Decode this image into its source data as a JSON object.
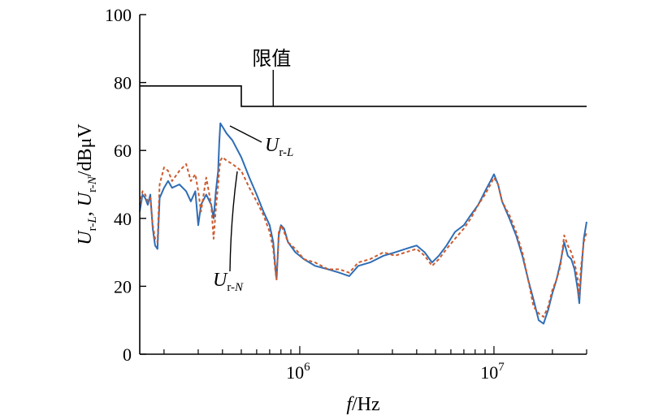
{
  "chart_data": {
    "type": "line",
    "xscale": "log",
    "xlim": [
      150000,
      30000000
    ],
    "ylim": [
      0,
      100
    ],
    "x_ticks": [
      1000000,
      10000000
    ],
    "x_tick_labels": [
      {
        "base": "10",
        "exp": "6"
      },
      {
        "base": "10",
        "exp": "7"
      }
    ],
    "y_ticks": [
      0,
      20,
      40,
      60,
      80,
      100
    ],
    "y_tick_labels": [
      "0",
      "20",
      "40",
      "60",
      "80",
      "100"
    ],
    "xlabel": {
      "italic": "f",
      "rest": "/Hz"
    },
    "ylabel": {
      "u1": "U",
      "s1": "r-",
      "s1i": "L",
      "sep": ", ",
      "u2": "U",
      "s2": "r-",
      "s2i": "N",
      "unit": "/dBμV"
    },
    "grid": false,
    "legend": "none",
    "limit": {
      "label": "限值",
      "color": "#000000",
      "points": [
        [
          150000,
          79
        ],
        [
          500000,
          79
        ],
        [
          500000,
          73
        ],
        [
          30000000,
          73
        ]
      ]
    },
    "series": [
      {
        "label": {
          "u": "U",
          "s": "r-",
          "si": "L"
        },
        "color": "#2f6db5",
        "dash": "solid",
        "points": [
          [
            150000,
            42
          ],
          [
            155000,
            47
          ],
          [
            160000,
            46
          ],
          [
            165000,
            44
          ],
          [
            170000,
            47
          ],
          [
            175000,
            37
          ],
          [
            180000,
            32
          ],
          [
            185000,
            31
          ],
          [
            190000,
            46
          ],
          [
            200000,
            49
          ],
          [
            210000,
            51
          ],
          [
            220000,
            49
          ],
          [
            240000,
            50
          ],
          [
            260000,
            48
          ],
          [
            275000,
            45
          ],
          [
            290000,
            48
          ],
          [
            300000,
            38
          ],
          [
            310000,
            44
          ],
          [
            330000,
            47
          ],
          [
            350000,
            44
          ],
          [
            360000,
            40
          ],
          [
            370000,
            48
          ],
          [
            380000,
            54
          ],
          [
            385000,
            62
          ],
          [
            390000,
            68
          ],
          [
            400000,
            67
          ],
          [
            420000,
            65
          ],
          [
            450000,
            63
          ],
          [
            500000,
            58
          ],
          [
            550000,
            52
          ],
          [
            600000,
            47
          ],
          [
            650000,
            42
          ],
          [
            700000,
            38
          ],
          [
            730000,
            33
          ],
          [
            750000,
            25
          ],
          [
            760000,
            22
          ],
          [
            780000,
            35
          ],
          [
            800000,
            38
          ],
          [
            830000,
            37
          ],
          [
            870000,
            33
          ],
          [
            950000,
            30
          ],
          [
            1050000,
            28
          ],
          [
            1200000,
            26
          ],
          [
            1400000,
            25
          ],
          [
            1600000,
            24
          ],
          [
            1800000,
            23
          ],
          [
            2000000,
            26
          ],
          [
            2300000,
            27
          ],
          [
            2700000,
            29
          ],
          [
            3100000,
            30
          ],
          [
            3500000,
            31
          ],
          [
            4000000,
            32
          ],
          [
            4400000,
            30
          ],
          [
            4800000,
            27
          ],
          [
            5200000,
            29
          ],
          [
            5700000,
            32
          ],
          [
            6300000,
            36
          ],
          [
            7000000,
            38
          ],
          [
            7600000,
            41
          ],
          [
            8300000,
            44
          ],
          [
            9000000,
            48
          ],
          [
            9600000,
            51
          ],
          [
            10000000,
            53
          ],
          [
            10500000,
            50
          ],
          [
            11000000,
            45
          ],
          [
            12000000,
            40
          ],
          [
            13000000,
            35
          ],
          [
            14000000,
            29
          ],
          [
            15000000,
            22
          ],
          [
            16000000,
            16
          ],
          [
            17000000,
            10
          ],
          [
            18000000,
            9
          ],
          [
            19000000,
            13
          ],
          [
            20000000,
            18
          ],
          [
            21000000,
            22
          ],
          [
            22000000,
            27
          ],
          [
            23000000,
            33
          ],
          [
            24000000,
            29
          ],
          [
            25000000,
            28
          ],
          [
            26000000,
            25
          ],
          [
            27000000,
            19
          ],
          [
            27500000,
            15
          ],
          [
            28000000,
            22
          ],
          [
            29000000,
            34
          ],
          [
            30000000,
            39
          ]
        ]
      },
      {
        "label": {
          "u": "U",
          "s": "r-",
          "si": "N"
        },
        "color": "#cc5b2e",
        "dash": "4 3",
        "points": [
          [
            150000,
            44
          ],
          [
            155000,
            48
          ],
          [
            160000,
            47
          ],
          [
            165000,
            45
          ],
          [
            170000,
            46
          ],
          [
            175000,
            38
          ],
          [
            180000,
            34
          ],
          [
            185000,
            33
          ],
          [
            190000,
            50
          ],
          [
            200000,
            55
          ],
          [
            210000,
            54
          ],
          [
            220000,
            51
          ],
          [
            240000,
            54
          ],
          [
            260000,
            56
          ],
          [
            275000,
            51
          ],
          [
            290000,
            53
          ],
          [
            300000,
            48
          ],
          [
            310000,
            42
          ],
          [
            330000,
            52
          ],
          [
            350000,
            44
          ],
          [
            360000,
            34
          ],
          [
            370000,
            43
          ],
          [
            380000,
            50
          ],
          [
            385000,
            54
          ],
          [
            390000,
            57
          ],
          [
            400000,
            58
          ],
          [
            420000,
            57
          ],
          [
            450000,
            56
          ],
          [
            500000,
            54
          ],
          [
            550000,
            49
          ],
          [
            600000,
            45
          ],
          [
            650000,
            41
          ],
          [
            700000,
            36
          ],
          [
            730000,
            31
          ],
          [
            750000,
            24
          ],
          [
            760000,
            22
          ],
          [
            780000,
            36
          ],
          [
            800000,
            38
          ],
          [
            830000,
            36
          ],
          [
            870000,
            33
          ],
          [
            950000,
            31
          ],
          [
            1050000,
            28
          ],
          [
            1200000,
            27
          ],
          [
            1400000,
            25
          ],
          [
            1600000,
            25
          ],
          [
            1800000,
            24
          ],
          [
            2000000,
            27
          ],
          [
            2300000,
            28
          ],
          [
            2700000,
            30
          ],
          [
            3100000,
            29
          ],
          [
            3500000,
            30
          ],
          [
            4000000,
            31
          ],
          [
            4400000,
            29
          ],
          [
            4800000,
            26
          ],
          [
            5200000,
            28
          ],
          [
            5700000,
            31
          ],
          [
            6300000,
            34
          ],
          [
            7000000,
            37
          ],
          [
            7600000,
            40
          ],
          [
            8300000,
            44
          ],
          [
            9000000,
            47
          ],
          [
            9600000,
            50
          ],
          [
            10000000,
            52
          ],
          [
            10500000,
            50
          ],
          [
            11000000,
            45
          ],
          [
            12000000,
            41
          ],
          [
            13000000,
            36
          ],
          [
            14000000,
            30
          ],
          [
            15000000,
            22
          ],
          [
            16000000,
            14
          ],
          [
            17000000,
            12
          ],
          [
            18000000,
            11
          ],
          [
            19000000,
            14
          ],
          [
            20000000,
            19
          ],
          [
            21000000,
            22
          ],
          [
            22000000,
            26
          ],
          [
            23000000,
            35
          ],
          [
            24000000,
            32
          ],
          [
            25000000,
            30
          ],
          [
            26000000,
            27
          ],
          [
            27000000,
            22
          ],
          [
            27500000,
            17
          ],
          [
            28000000,
            25
          ],
          [
            29000000,
            33
          ],
          [
            30000000,
            36
          ]
        ]
      }
    ]
  }
}
